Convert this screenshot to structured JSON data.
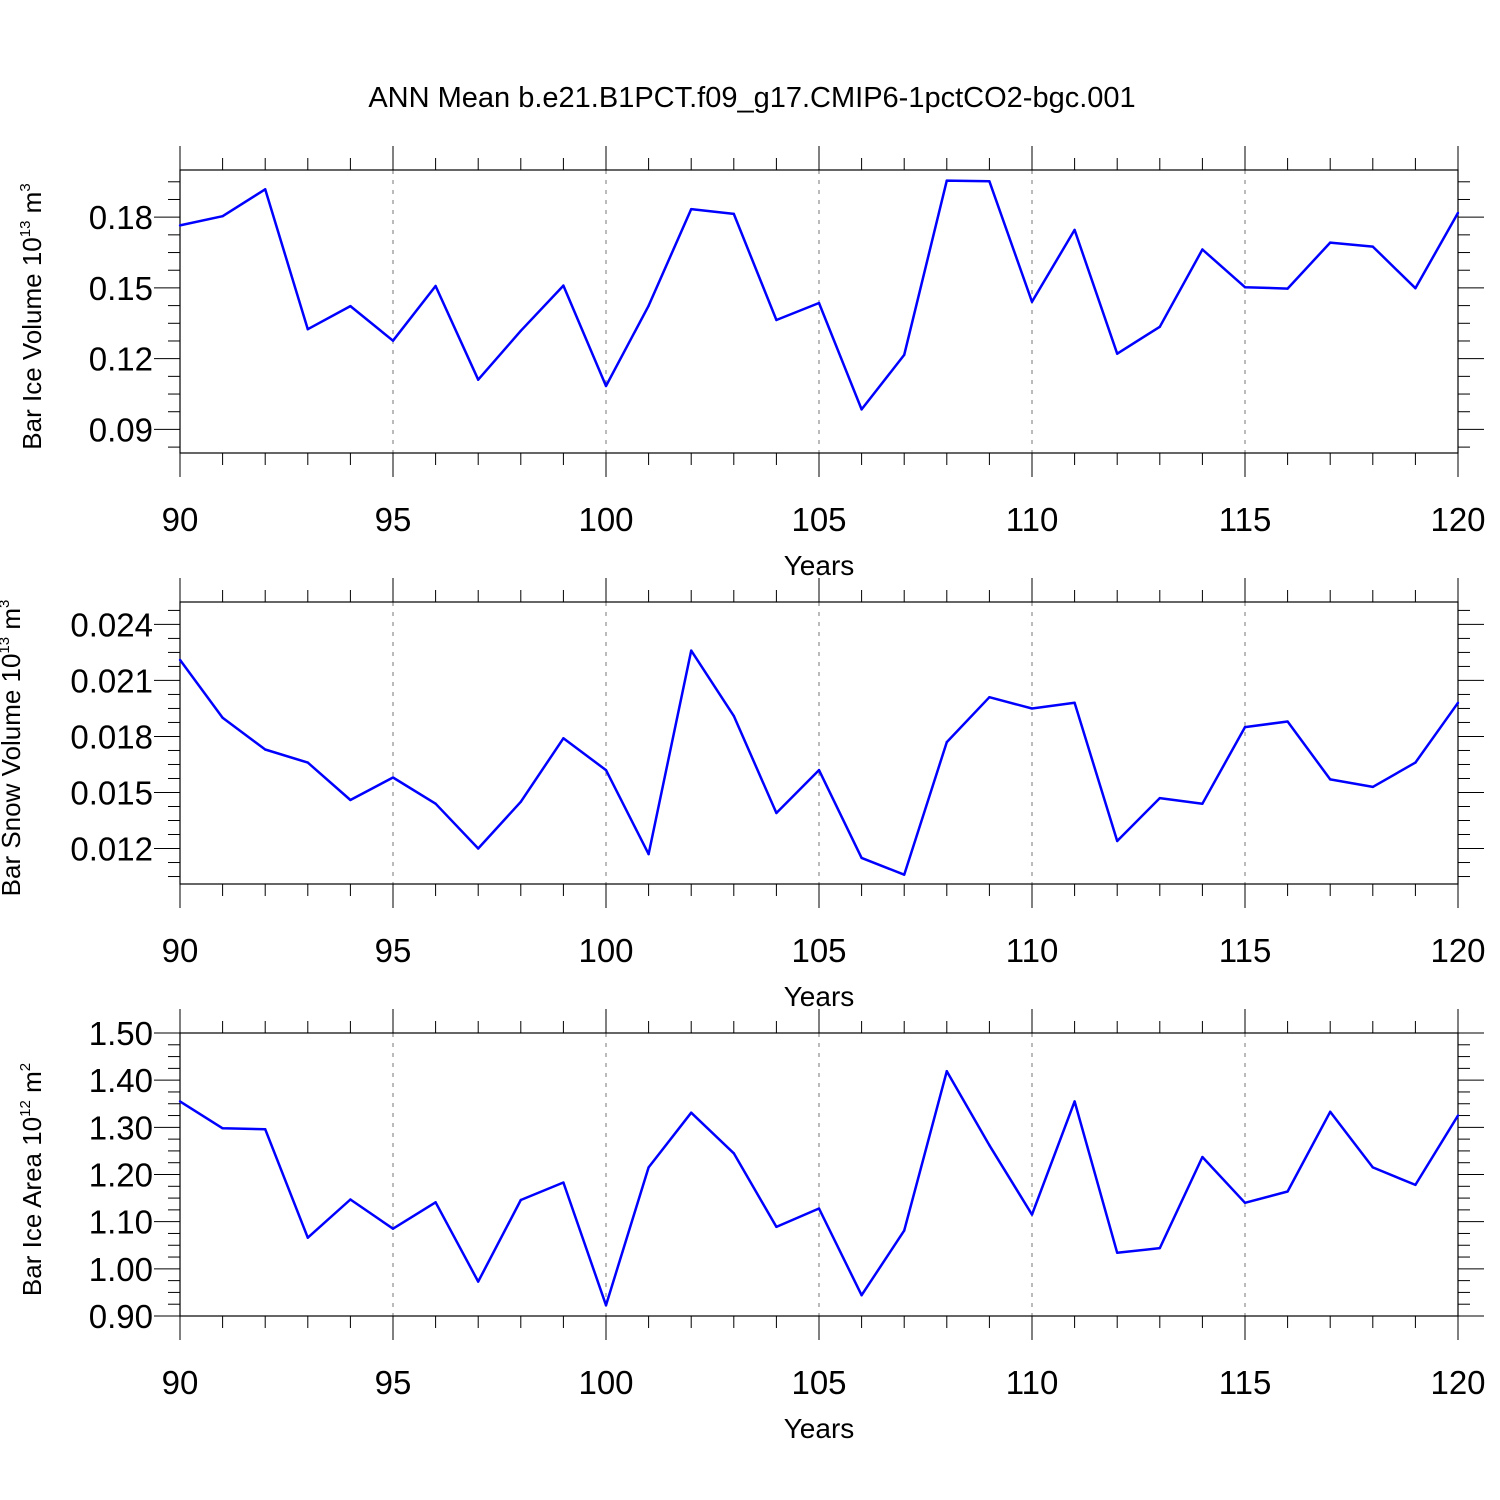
{
  "title": "ANN Mean b.e21.B1PCT.f09_g17.CMIP6-1pctCO2-bgc.001",
  "colors": {
    "series": "#0000ff",
    "frame": "#000000",
    "grid": "#777777"
  },
  "chart_data": [
    {
      "type": "line",
      "ylabel": {
        "main": "Bar Ice Volume 10",
        "exp": "13",
        "unit": " m",
        "unit_exp": "3"
      },
      "xlabel": "Years",
      "xlim": [
        90,
        120
      ],
      "ylim": [
        0.08,
        0.2
      ],
      "xticks": [
        90,
        95,
        100,
        105,
        110,
        115,
        120
      ],
      "xtick_labels": [
        "90",
        "95",
        "100",
        "105",
        "110",
        "115",
        "120"
      ],
      "yticks": [
        0.09,
        0.12,
        0.15,
        0.18
      ],
      "ytick_labels": [
        "0.09",
        "0.12",
        "0.15",
        "0.18"
      ],
      "grid": "x-dashed",
      "x": [
        90,
        91,
        92,
        93,
        94,
        95,
        96,
        97,
        98,
        99,
        100,
        101,
        102,
        103,
        104,
        105,
        106,
        107,
        108,
        109,
        110,
        111,
        112,
        113,
        114,
        115,
        116,
        117,
        118,
        119,
        120
      ],
      "values": [
        0.1765,
        0.1804,
        0.1918,
        0.1325,
        0.1423,
        0.1276,
        0.1508,
        0.1111,
        0.1318,
        0.151,
        0.1084,
        0.1424,
        0.1834,
        0.1814,
        0.1364,
        0.1436,
        0.0985,
        0.1216,
        0.1955,
        0.1952,
        0.1441,
        0.1746,
        0.1221,
        0.1335,
        0.1663,
        0.1503,
        0.1497,
        0.1692,
        0.1675,
        0.1499,
        0.1818
      ]
    },
    {
      "type": "line",
      "ylabel": {
        "main": "Bar Snow Volume 10",
        "exp": "13",
        "unit": " m",
        "unit_exp": "3"
      },
      "xlabel": "Years",
      "xlim": [
        90,
        120
      ],
      "ylim": [
        0.0101,
        0.0252
      ],
      "xticks": [
        90,
        95,
        100,
        105,
        110,
        115,
        120
      ],
      "xtick_labels": [
        "90",
        "95",
        "100",
        "105",
        "110",
        "115",
        "120"
      ],
      "yticks": [
        0.012,
        0.015,
        0.018,
        0.021,
        0.024
      ],
      "ytick_labels": [
        "0.012",
        "0.015",
        "0.018",
        "0.021",
        "0.024"
      ],
      "grid": "x-dashed",
      "x": [
        90,
        91,
        92,
        93,
        94,
        95,
        96,
        97,
        98,
        99,
        100,
        101,
        102,
        103,
        104,
        105,
        106,
        107,
        108,
        109,
        110,
        111,
        112,
        113,
        114,
        115,
        116,
        117,
        118,
        119,
        120
      ],
      "values": [
        0.0221,
        0.019,
        0.0173,
        0.0166,
        0.0146,
        0.0158,
        0.0144,
        0.012,
        0.0145,
        0.0179,
        0.0162,
        0.0117,
        0.0226,
        0.0191,
        0.0139,
        0.0162,
        0.0115,
        0.0106,
        0.0177,
        0.0201,
        0.0195,
        0.0198,
        0.0124,
        0.0147,
        0.0144,
        0.0185,
        0.0188,
        0.0157,
        0.0153,
        0.0166,
        0.0198
      ]
    },
    {
      "type": "line",
      "ylabel": {
        "main": "Bar Ice Area 10",
        "exp": "12",
        "unit": " m",
        "unit_exp": "2"
      },
      "xlabel": "Years",
      "xlim": [
        90,
        120
      ],
      "ylim": [
        0.9,
        1.5
      ],
      "xticks": [
        90,
        95,
        100,
        105,
        110,
        115,
        120
      ],
      "xtick_labels": [
        "90",
        "95",
        "100",
        "105",
        "110",
        "115",
        "120"
      ],
      "yticks": [
        0.9,
        1.0,
        1.1,
        1.2,
        1.3,
        1.4,
        1.5
      ],
      "ytick_labels": [
        "0.90",
        "1.00",
        "1.10",
        "1.20",
        "1.30",
        "1.40",
        "1.50"
      ],
      "grid": "x-dashed",
      "x": [
        90,
        91,
        92,
        93,
        94,
        95,
        96,
        97,
        98,
        99,
        100,
        101,
        102,
        103,
        104,
        105,
        106,
        107,
        108,
        109,
        110,
        111,
        112,
        113,
        114,
        115,
        116,
        117,
        118,
        119,
        120
      ],
      "values": [
        1.355,
        1.298,
        1.296,
        1.066,
        1.147,
        1.085,
        1.141,
        0.973,
        1.146,
        1.183,
        0.923,
        1.215,
        1.331,
        1.245,
        1.089,
        1.128,
        0.944,
        1.081,
        1.419,
        1.262,
        1.115,
        1.355,
        1.034,
        1.044,
        1.237,
        1.14,
        1.164,
        1.333,
        1.215,
        1.178,
        1.325
      ]
    }
  ]
}
